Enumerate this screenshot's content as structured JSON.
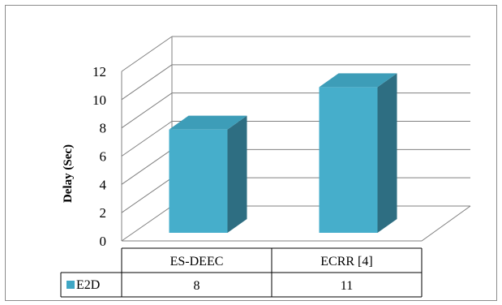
{
  "chart_data": {
    "type": "bar",
    "style": "3d-clustered-column",
    "title": "",
    "xlabel": "",
    "ylabel": "Delay (Sec)",
    "ylim": [
      0,
      12
    ],
    "yticks": [
      "0",
      "2",
      "4",
      "6",
      "8",
      "10",
      "12"
    ],
    "categories": [
      "ES-DEEC",
      "ECRR [4]"
    ],
    "series": [
      {
        "name": "E2D",
        "values": [
          8,
          11
        ],
        "value_labels": [
          "8",
          "11"
        ]
      }
    ],
    "data_table": true,
    "grid": true,
    "colors": {
      "bar_front": "#46AECB",
      "bar_top": "#3D9DB8",
      "bar_side": "#2E6E82",
      "legend_key": "#3FA7C5"
    }
  }
}
